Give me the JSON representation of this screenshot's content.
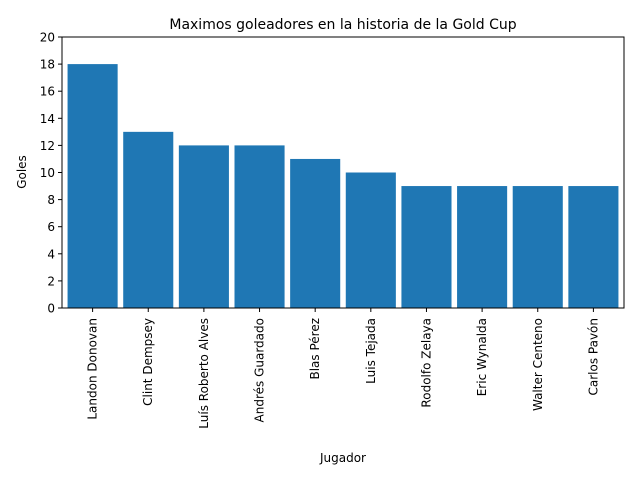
{
  "chart_data": {
    "type": "bar",
    "title": "Maximos goleadores en la historia de la Gold Cup",
    "xlabel": "Jugador",
    "ylabel": "Goles",
    "categories": [
      "Landon Donovan",
      "Clint Dempsey",
      "Luís Roberto Alves",
      "Andrés Guardado",
      "Blas Pérez",
      "Luis Tejada",
      "Rodolfo Zelaya",
      "Eric Wynalda",
      "Walter Centeno",
      "Carlos Pavón"
    ],
    "values": [
      18,
      13,
      12,
      12,
      11,
      10,
      9,
      9,
      9,
      9
    ],
    "ylim": [
      0,
      20
    ],
    "yticks": [
      0,
      2,
      4,
      6,
      8,
      10,
      12,
      14,
      16,
      18,
      20
    ],
    "bar_color": "#1f77b4",
    "grid": false,
    "legend": "none"
  }
}
